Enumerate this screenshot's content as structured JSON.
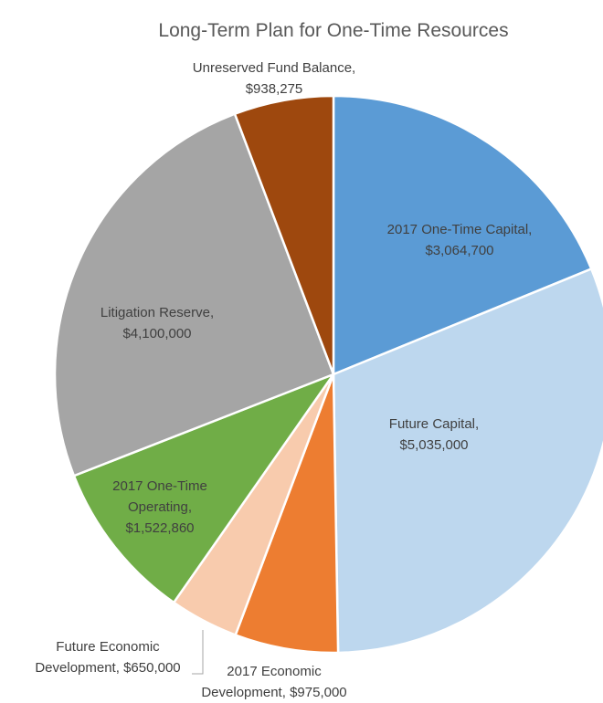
{
  "chart_data": {
    "type": "pie",
    "title": "Long-Term Plan for One-Time Resources",
    "categories": [
      "2017 One-Time Capital,",
      "Future Capital,",
      "2017 Economic Development,",
      "Future Economic Development,",
      "2017 One-Time Operating,",
      "Litigation Reserve,",
      "Unreserved Fund Balance,"
    ],
    "values": [
      3064700,
      5035000,
      975000,
      650000,
      1522860,
      4100000,
      938275
    ],
    "value_labels": [
      "$3,064,700",
      "$5,035,000",
      "$975,000",
      "$650,000",
      "$1,522,860",
      "$4,100,000",
      "$938,275"
    ],
    "colors": [
      "#5b9bd5",
      "#bdd7ee",
      "#ed7d31",
      "#f8cbad",
      "#70ad47",
      "#a5a5a5",
      "#9e480e"
    ]
  }
}
